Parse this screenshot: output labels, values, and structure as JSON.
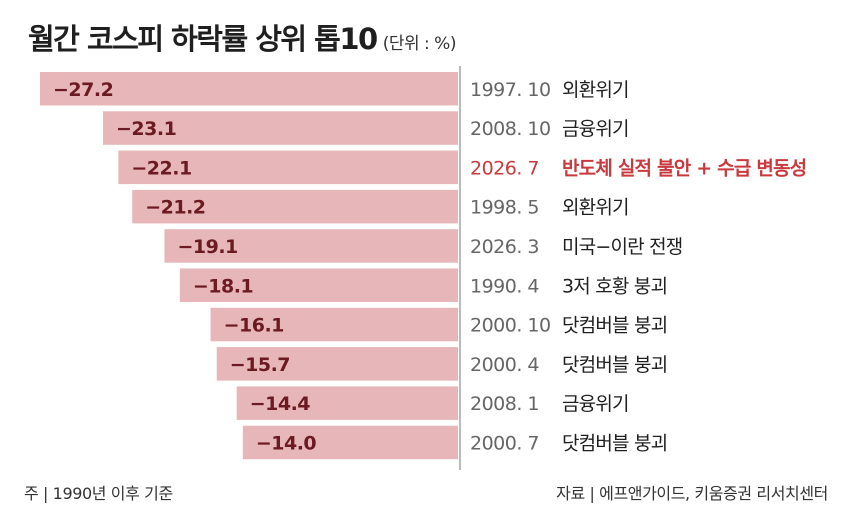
{
  "title": "월간 코스피 하락률 상위 톱10",
  "unit": "(단위 : %)",
  "footnote": "주 | 1990년 이후 기준",
  "source": "자료 | 에프앤가이드, 키움증권 리서치센터",
  "colors": {
    "bar": "#e6b6b8",
    "value_text": "#6b1a22",
    "highlight_text": "#c9393d",
    "date_text": "#666666",
    "label_text": "#1f1f1f",
    "axis": "#777777"
  },
  "chart_data": {
    "type": "bar",
    "orientation": "horizontal",
    "xlim": [
      -27.2,
      0
    ],
    "categories": [
      "1997. 10",
      "2008. 10",
      "2026. 7",
      "1998. 5",
      "2026. 3",
      "1990. 4",
      "2000. 10",
      "2000. 4",
      "2008. 1",
      "2000. 7"
    ],
    "values": [
      -27.2,
      -23.1,
      -22.1,
      -21.2,
      -19.1,
      -18.1,
      -16.1,
      -15.7,
      -14.4,
      -14.0
    ],
    "value_labels": [
      "−27.2",
      "−23.1",
      "−22.1",
      "−21.2",
      "−19.1",
      "−18.1",
      "−16.1",
      "−15.7",
      "−14.4",
      "−14.0"
    ],
    "reasons": [
      "외환위기",
      "금융위기",
      "반도체 실적 불안 + 수급 변동성",
      "외환위기",
      "미국−이란 전쟁",
      "3저 호황 붕괴",
      "닷컴버블 붕괴",
      "닷컴버블 붕괴",
      "금융위기",
      "닷컴버블 붕괴"
    ],
    "highlight_index": 2
  }
}
